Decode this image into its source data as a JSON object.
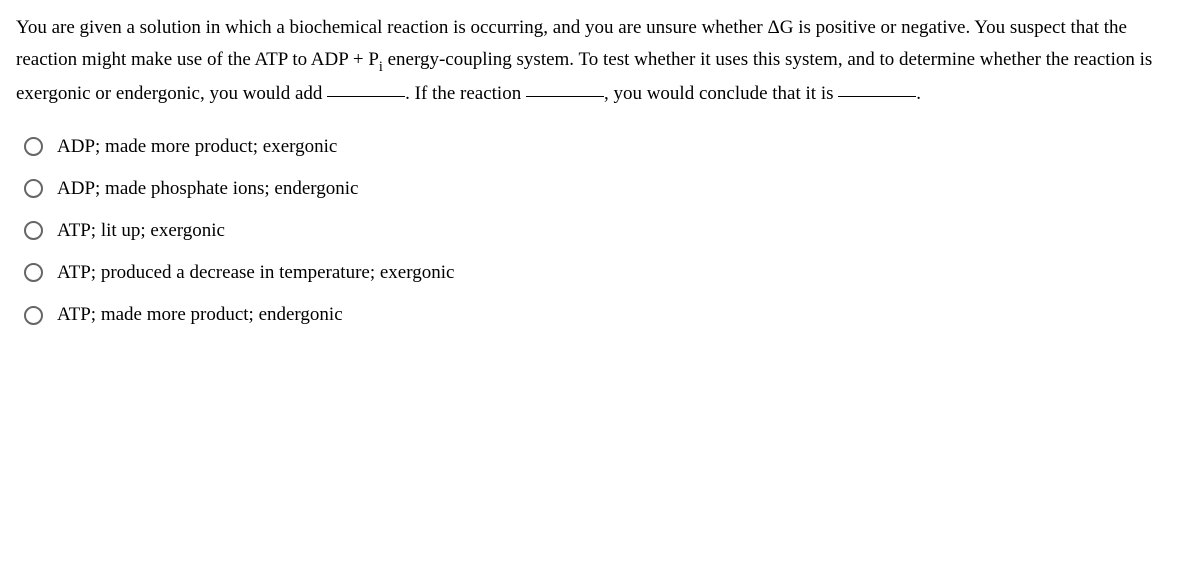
{
  "question": {
    "seg1": "You are given a solution in which a biochemical reaction is occurring, and you are unsure whether ΔG is positive or negative. You suspect that the reaction might make use of the ATP to ADP + P",
    "sub1": "i",
    "seg2": " energy-coupling system. To test whether it uses this system, and to determine whether the reaction is exergonic or endergonic, you would add ",
    "seg3": ". If the reaction ",
    "seg4": ", you would conclude that it is ",
    "seg5": "."
  },
  "options": [
    "ADP; made more product; exergonic",
    "ADP; made phosphate ions; endergonic",
    "ATP; lit up; exergonic",
    "ATP; produced a decrease in temperature; exergonic",
    "ATP; made more product; endergonic"
  ]
}
